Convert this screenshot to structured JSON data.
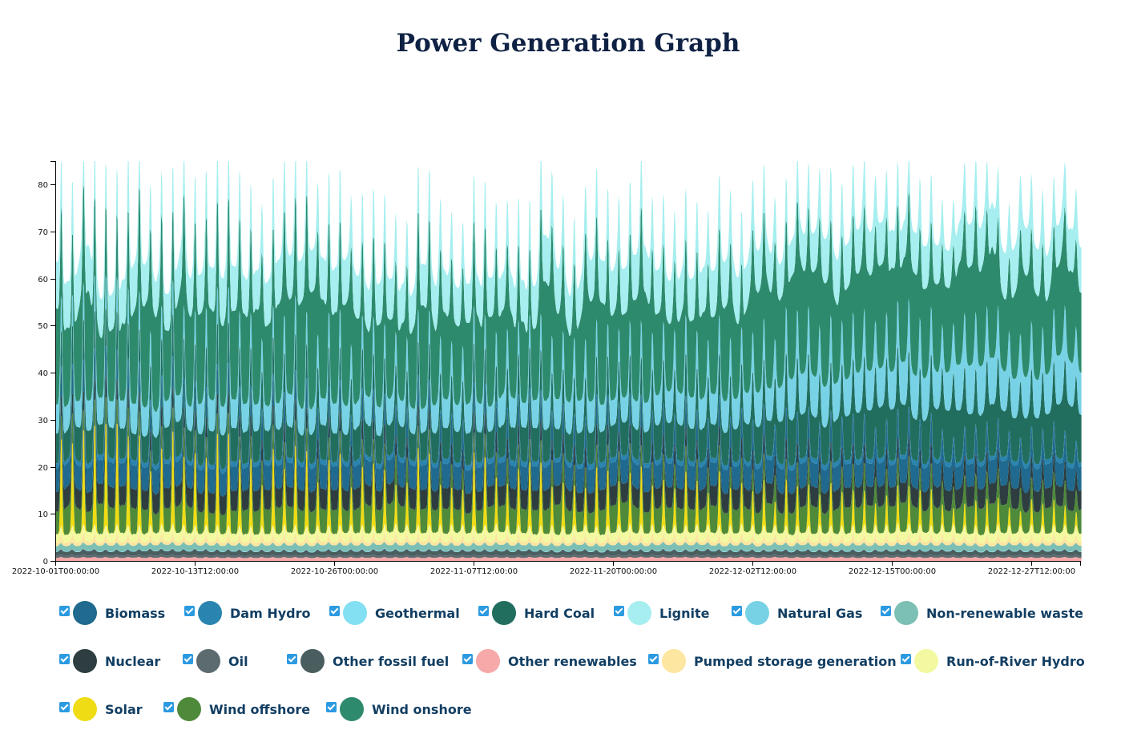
{
  "title": "Power Generation Graph",
  "chart_data": {
    "type": "area",
    "stacked": true,
    "title": "Power Generation Graph",
    "x_range": [
      "2022-10-01T00:00:00",
      "2022-12-31T23:00:00"
    ],
    "x_ticks": [
      "2022-10-01T00:00:00",
      "2022-10-13T12:00:00",
      "2022-10-26T00:00:00",
      "2022-11-07T12:00:00",
      "2022-11-20T00:00:00",
      "2022-12-02T12:00:00",
      "2022-12-15T00:00:00",
      "2022-12-27T12:00:00"
    ],
    "y_ticks": [
      0,
      10,
      20,
      30,
      40,
      50,
      60,
      70,
      80
    ],
    "ylim": [
      0,
      85
    ],
    "resolution": "hourly",
    "series": [
      {
        "name": "Other renewables",
        "color": "#f7a8a8",
        "profile": "flat",
        "level": 0.4,
        "var": 0.1,
        "pk": 0.4
      },
      {
        "name": "Oil",
        "color": "#5c6b70",
        "profile": "flat",
        "level": 0.3,
        "var": 0.1,
        "pk": 0.2
      },
      {
        "name": "Other fossil fuel",
        "color": "#4a5e60",
        "profile": "flat",
        "level": 0.5,
        "var": 0.2,
        "pk": 0.5
      },
      {
        "name": "Geothermal",
        "color": "#83e0f2",
        "profile": "flat",
        "level": 0.1,
        "var": 0.0,
        "pk": 0.0
      },
      {
        "name": "Non-renewable waste",
        "color": "#7cbfb4",
        "profile": "flat",
        "level": 1.0,
        "var": 0.2,
        "pk": 0.2
      },
      {
        "name": "Pumped storage generation",
        "color": "#fde6a0",
        "profile": "peak",
        "level": 0.6,
        "var": 0.3,
        "pk": 1.2
      },
      {
        "name": "Run-of-River Hydro",
        "color": "#f2f9a0",
        "profile": "flat",
        "level": 1.5,
        "var": 0.4,
        "pk": 0.3
      },
      {
        "name": "Solar",
        "color": "#f0dc14",
        "profile": "solar",
        "level": 0.0,
        "var": 0.0,
        "pk": 26.0
      },
      {
        "name": "Wind offshore",
        "color": "#4e8a3a",
        "profile": "wind",
        "level": 3.8,
        "var": 2.8,
        "pk": 0.0
      },
      {
        "name": "Nuclear",
        "color": "#2e3e40",
        "profile": "flat",
        "level": 4.0,
        "var": 0.4,
        "pk": 0.0
      },
      {
        "name": "Biomass",
        "color": "#1f6a8e",
        "profile": "flat",
        "level": 4.5,
        "var": 0.5,
        "pk": 0.5
      },
      {
        "name": "Dam Hydro",
        "color": "#2a84b0",
        "profile": "flat",
        "level": 0.5,
        "var": 0.3,
        "pk": 0.6
      },
      {
        "name": "Hard Coal",
        "color": "#226e5e",
        "profile": "coal",
        "level": 4.0,
        "var": 2.0,
        "pk": 3.0
      },
      {
        "name": "Natural Gas",
        "color": "#78d2e6",
        "profile": "gas",
        "level": 3.5,
        "var": 2.0,
        "pk": 3.0
      },
      {
        "name": "Wind onshore",
        "color": "#2e8a6c",
        "profile": "wind",
        "level": 12.0,
        "var": 14.0,
        "pk": 0.0
      },
      {
        "name": "Lignite",
        "color": "#a6eeef",
        "profile": "lignite",
        "level": 6.0,
        "var": 3.0,
        "pk": 3.0
      }
    ]
  },
  "legend": {
    "items": [
      {
        "label": "Biomass",
        "color": "#1f6a8e"
      },
      {
        "label": "Dam Hydro",
        "color": "#2a84b0"
      },
      {
        "label": "Geothermal",
        "color": "#83e0f2"
      },
      {
        "label": "Hard Coal",
        "color": "#226e5e"
      },
      {
        "label": "Lignite",
        "color": "#a6eeef"
      },
      {
        "label": "Natural Gas",
        "color": "#78d2e6"
      },
      {
        "label": "Non-renewable waste",
        "color": "#7cbfb4"
      },
      {
        "label": "Nuclear",
        "color": "#2e3e40"
      },
      {
        "label": "Oil",
        "color": "#5c6b70"
      },
      {
        "label": "Other fossil fuel",
        "color": "#4a5e60"
      },
      {
        "label": "Other renewables",
        "color": "#f7a8a8"
      },
      {
        "label": "Pumped storage generation",
        "color": "#fde6a0"
      },
      {
        "label": "Run-of-River Hydro",
        "color": "#f2f9a0"
      },
      {
        "label": "Solar",
        "color": "#f0dc14"
      },
      {
        "label": "Wind offshore",
        "color": "#4e8a3a"
      },
      {
        "label": "Wind onshore",
        "color": "#2e8a6c"
      }
    ]
  }
}
